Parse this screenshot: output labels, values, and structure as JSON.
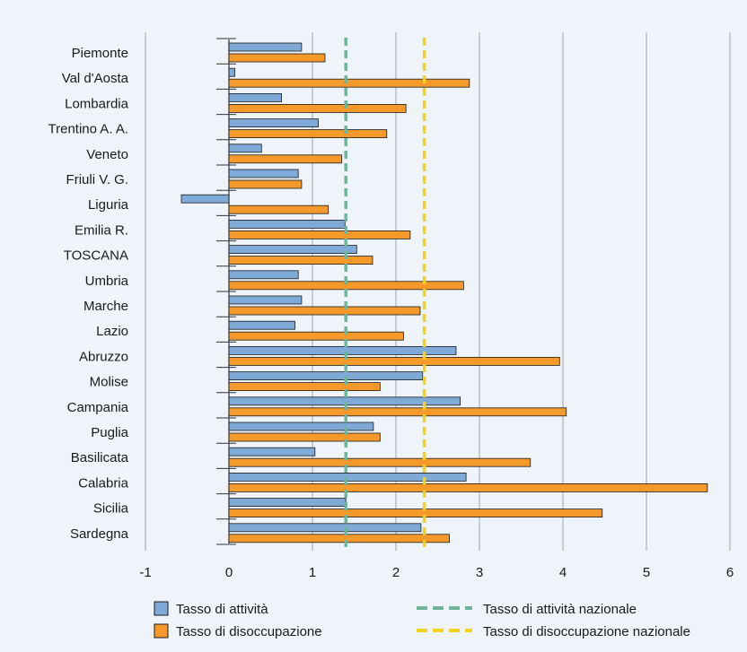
{
  "chart_data": {
    "type": "bar",
    "orientation": "horizontal",
    "categories": [
      "Piemonte",
      "Val d'Aosta",
      "Lombardia",
      "Trentino A. A.",
      "Veneto",
      "Friuli V. G.",
      "Liguria",
      "Emilia R.",
      "TOSCANA",
      "Umbria",
      "Marche",
      "Lazio",
      "Abruzzo",
      "Molise",
      "Campania",
      "Puglia",
      "Basilicata",
      "Calabria",
      "Sicilia",
      "Sardegna"
    ],
    "highlight_category": "TOSCANA",
    "series": [
      {
        "name": "Tasso di attività",
        "color": "#7fa9d6",
        "values": [
          0.87,
          0.07,
          0.63,
          1.07,
          0.39,
          0.83,
          -0.57,
          1.39,
          1.53,
          0.83,
          0.87,
          0.79,
          2.72,
          2.32,
          2.77,
          1.73,
          1.03,
          2.84,
          1.4,
          2.3
        ]
      },
      {
        "name": "Tasso di disoccupazione",
        "color": "#f59a2a",
        "values": [
          1.15,
          2.88,
          2.12,
          1.89,
          1.35,
          0.87,
          1.19,
          2.17,
          1.72,
          2.81,
          2.29,
          2.09,
          3.96,
          1.81,
          4.04,
          1.81,
          3.61,
          5.73,
          4.47,
          2.64
        ]
      }
    ],
    "reference_lines": [
      {
        "name": "Tasso di attività nazionale",
        "value": 1.4,
        "color": "#6fb59b"
      },
      {
        "name": "Tasso di disoccupazione nazionale",
        "value": 2.34,
        "color": "#f2d21e"
      }
    ],
    "xticks": [
      "-1",
      "0",
      "1",
      "2",
      "3",
      "4",
      "5",
      "6"
    ],
    "xlim": [
      -1,
      6
    ],
    "grid": "vertical",
    "legend": "bottom",
    "highlight_color": "#7fa9d6"
  }
}
